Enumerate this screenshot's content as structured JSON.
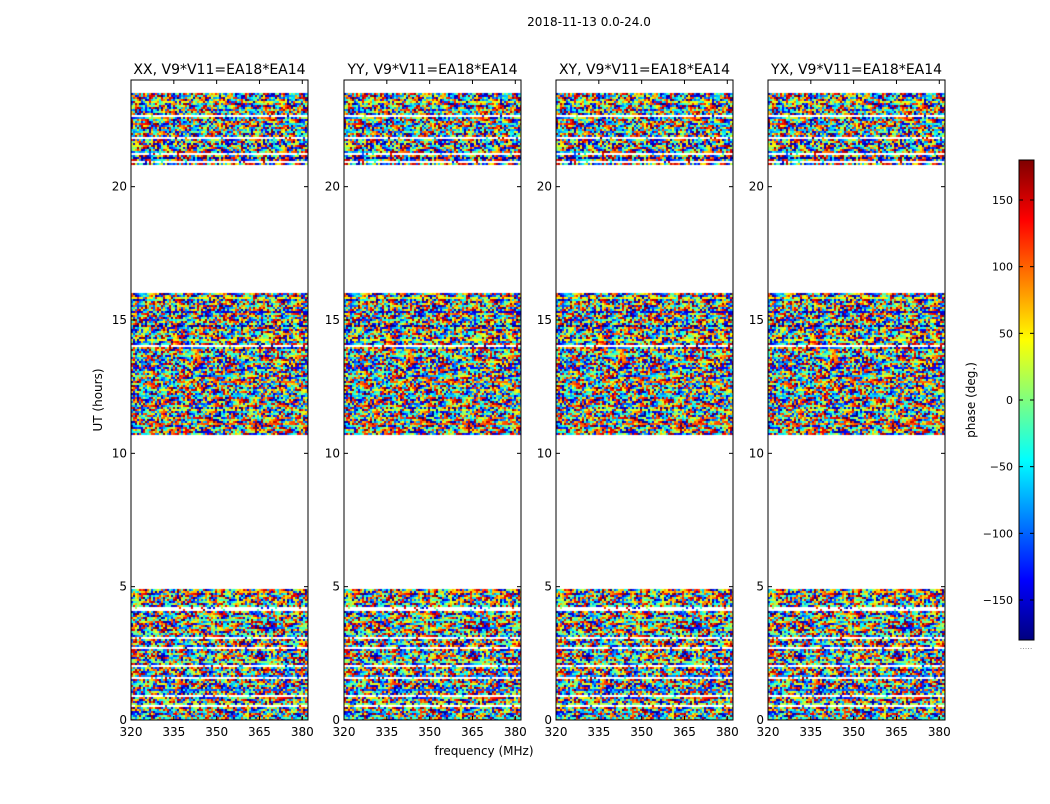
{
  "chart_data": {
    "type": "heatmap",
    "suptitle": "2018-11-13 0.0-24.0",
    "xlabel": "frequency (MHz)",
    "ylabel": "UT (hours)",
    "xlim": [
      320,
      382
    ],
    "ylim": [
      0,
      24
    ],
    "xticks": [
      320,
      335,
      350,
      365,
      380
    ],
    "yticks": [
      0,
      5,
      10,
      15,
      20
    ],
    "panels": [
      {
        "title": "XX, V9*V11=EA18*EA14"
      },
      {
        "title": "YY, V9*V11=EA18*EA14"
      },
      {
        "title": "XY, V9*V11=EA18*EA14"
      },
      {
        "title": "YX, V9*V11=EA18*EA14"
      }
    ],
    "data_time_ranges_hours": [
      [
        0.0,
        4.9
      ],
      [
        10.7,
        16.0
      ],
      [
        20.8,
        23.5
      ]
    ],
    "colorbar": {
      "label": "phase (deg.)",
      "range": [
        -180,
        180
      ],
      "ticks": [
        150,
        100,
        50,
        0,
        -50,
        -100,
        -150
      ],
      "tick_labels": [
        "150",
        "100",
        "50",
        "0",
        "−50",
        "−100",
        "−150"
      ],
      "colormap": "jet",
      "footer": "....."
    }
  }
}
